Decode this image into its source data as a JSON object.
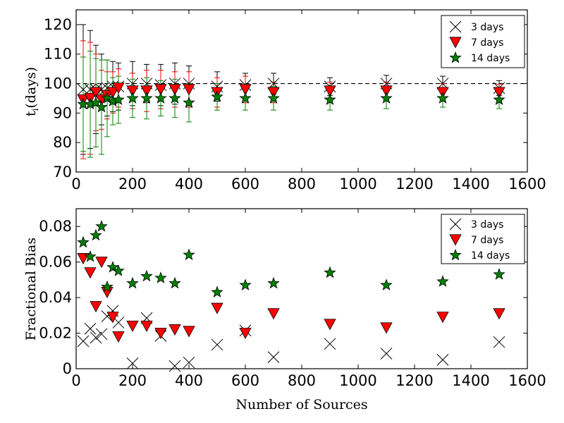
{
  "chart_data": [
    {
      "type": "scatter",
      "panel": "top",
      "ylabel_main": "t",
      "ylabel_sub": "i",
      "ylabel_rest": "(days)",
      "xlabel": "",
      "xlim": [
        0,
        1600
      ],
      "ylim": [
        70,
        125
      ],
      "xticks": [
        0,
        200,
        400,
        600,
        800,
        1000,
        1200,
        1400,
        1600
      ],
      "yticks": [
        70,
        80,
        90,
        100,
        110,
        120
      ],
      "reference_line": 100,
      "x": [
        25,
        50,
        70,
        90,
        110,
        130,
        150,
        200,
        250,
        300,
        350,
        400,
        500,
        600,
        700,
        900,
        1100,
        1300,
        1500
      ],
      "series": [
        {
          "name": "3 days",
          "marker": "x",
          "color": "#000000",
          "values": [
            98.0,
            98.0,
            98.0,
            98.0,
            98.5,
            99.0,
            99.0,
            100.0,
            100.0,
            99.5,
            100.0,
            100.0,
            99.0,
            99.5,
            100.0,
            99.0,
            100.0,
            100.0,
            98.5
          ],
          "errors": [
            22.0,
            20.0,
            15.0,
            12.0,
            9.5,
            8.5,
            8.0,
            7.5,
            6.5,
            7.0,
            7.0,
            6.0,
            5.0,
            4.0,
            3.5,
            3.0,
            2.8,
            2.5,
            2.5
          ]
        },
        {
          "name": "7 days",
          "marker": "triangle-down",
          "color": "#ff0000",
          "values": [
            94.5,
            95.0,
            97.0,
            94.5,
            96.0,
            97.0,
            98.5,
            97.5,
            97.5,
            98.0,
            98.0,
            98.0,
            97.0,
            98.0,
            97.0,
            97.5,
            97.5,
            97.0,
            97.0
          ],
          "errors": [
            20.0,
            19.0,
            13.0,
            10.0,
            8.0,
            7.0,
            6.5,
            6.0,
            7.0,
            6.5,
            6.0,
            6.0,
            5.0,
            4.5,
            3.5,
            3.0,
            3.0,
            3.0,
            2.8
          ]
        },
        {
          "name": "14 days",
          "marker": "star",
          "color": "#008000",
          "values": [
            93.0,
            93.0,
            93.5,
            92.0,
            95.0,
            94.0,
            94.5,
            95.0,
            95.0,
            95.0,
            95.0,
            93.5,
            95.5,
            95.0,
            95.0,
            94.5,
            95.0,
            95.0,
            94.5
          ],
          "errors": [
            16.0,
            18.0,
            15.0,
            16.0,
            13.0,
            8.0,
            8.0,
            6.5,
            7.0,
            6.0,
            6.5,
            6.5,
            4.5,
            4.0,
            4.0,
            3.5,
            3.5,
            3.0,
            3.0
          ]
        }
      ],
      "legend": [
        "3 days",
        "7 days",
        "14 days"
      ],
      "legend_position": "top-right"
    },
    {
      "type": "scatter",
      "panel": "bottom",
      "ylabel": "Fractional Bias",
      "xlabel": "Number of Sources",
      "xlim": [
        0,
        1600
      ],
      "ylim": [
        0,
        0.09
      ],
      "xticks": [
        0,
        200,
        400,
        600,
        800,
        1000,
        1200,
        1400,
        1600
      ],
      "yticks": [
        0,
        0.02,
        0.04,
        0.06,
        0.08
      ],
      "ytick_labels": [
        "0",
        "0.02",
        "0.04",
        "0.06",
        "0.08"
      ],
      "x": [
        25,
        50,
        70,
        90,
        110,
        130,
        150,
        200,
        250,
        300,
        350,
        400,
        500,
        600,
        700,
        900,
        1100,
        1300,
        1500
      ],
      "series": [
        {
          "name": "3 days",
          "marker": "x",
          "color": "#000000",
          "values": [
            0.0155,
            0.0225,
            0.0175,
            0.0195,
            0.0295,
            0.0325,
            0.026,
            0.003,
            0.0285,
            0.0185,
            0.0015,
            0.0035,
            0.0135,
            0.0215,
            0.0065,
            0.014,
            0.0085,
            0.005,
            0.015
          ]
        },
        {
          "name": "7 days",
          "marker": "triangle-down",
          "color": "#ff0000",
          "values": [
            0.062,
            0.054,
            0.035,
            0.06,
            0.043,
            0.029,
            0.018,
            0.024,
            0.024,
            0.02,
            0.022,
            0.021,
            0.034,
            0.02,
            0.031,
            0.025,
            0.023,
            0.029,
            0.031
          ]
        },
        {
          "name": "14 days",
          "marker": "star",
          "color": "#008000",
          "values": [
            0.071,
            0.063,
            0.075,
            0.08,
            0.046,
            0.057,
            0.055,
            0.048,
            0.052,
            0.051,
            0.048,
            0.064,
            0.043,
            0.047,
            0.048,
            0.054,
            0.047,
            0.049,
            0.053
          ]
        }
      ],
      "legend": [
        "3 days",
        "7 days",
        "14 days"
      ],
      "legend_position": "top-right"
    }
  ]
}
